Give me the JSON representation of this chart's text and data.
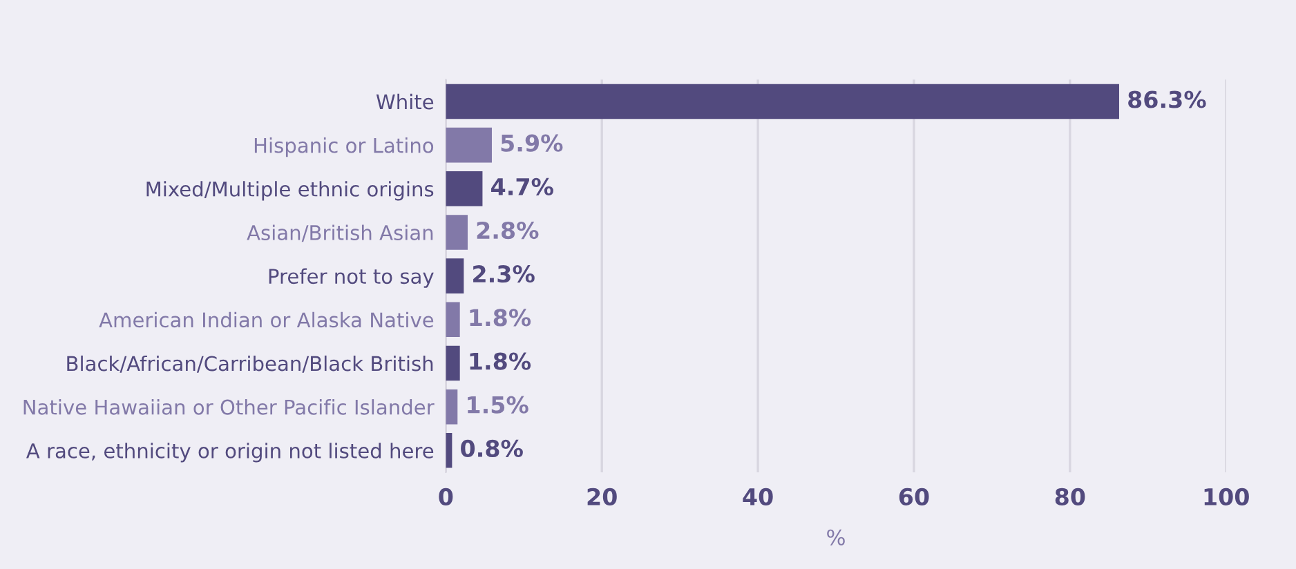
{
  "chart_data": {
    "type": "bar",
    "orientation": "horizontal",
    "xlabel": "%",
    "categories": [
      "White",
      "Hispanic or Latino",
      "Mixed/Multiple ethnic origins",
      "Asian/British Asian",
      "Prefer not to say",
      "American Indian or Alaska Native",
      "Black/African/Carribean/Black British",
      "Native Hawaiian or Other Pacific Islander",
      "A race, ethnicity or origin not listed here"
    ],
    "values": [
      86.3,
      5.9,
      4.7,
      2.8,
      2.3,
      1.8,
      1.8,
      1.5,
      0.8
    ],
    "colors": [
      "#524a7e",
      "#8279a8",
      "#524a7e",
      "#8279a8",
      "#524a7e",
      "#8279a8",
      "#524a7e",
      "#8279a8",
      "#524a7e"
    ],
    "value_labels": [
      "86.3%",
      "5.9%",
      "4.7%",
      "2.8%",
      "2.3%",
      "1.8%",
      "1.8%",
      "1.5%",
      "0.8%"
    ],
    "xlim": [
      0,
      100
    ],
    "xticks": [
      0,
      20,
      40,
      60,
      80,
      100
    ],
    "grid": "x",
    "legend": false
  }
}
